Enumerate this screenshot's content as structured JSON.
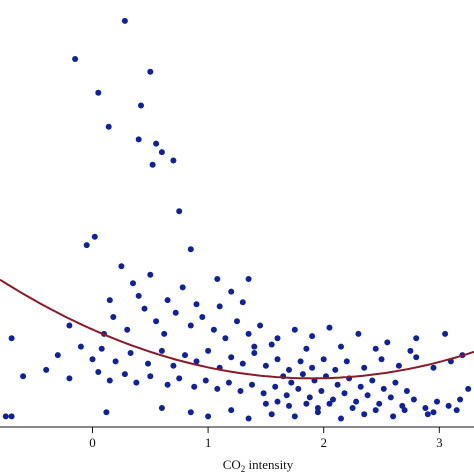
{
  "chart_data": {
    "type": "scatter",
    "xlabel": "CO",
    "xlabel_subscript": "2",
    "xlabel_suffix": " intensity",
    "xlim": [
      -0.8,
      3.3
    ],
    "ylim": [
      0,
      10
    ],
    "x_ticks": [
      {
        "value": 0,
        "label": "0"
      },
      {
        "value": 1,
        "label": "1"
      },
      {
        "value": 2,
        "label": "2"
      },
      {
        "value": 3,
        "label": "3"
      }
    ],
    "y_axis_visible": false,
    "grid": false,
    "fit_curve": {
      "type": "quadratic",
      "color": "#8b1a2b",
      "vertex_x": 1.9,
      "vertex_y": 1.15,
      "curvature": 0.32
    },
    "series": [
      {
        "color": "#10229a",
        "points": [
          [
            0.28,
            9.6
          ],
          [
            -0.15,
            8.7
          ],
          [
            0.5,
            8.4
          ],
          [
            0.05,
            7.9
          ],
          [
            0.42,
            7.6
          ],
          [
            0.14,
            7.1
          ],
          [
            0.4,
            6.8
          ],
          [
            0.55,
            6.7
          ],
          [
            0.6,
            6.5
          ],
          [
            0.7,
            6.3
          ],
          [
            0.52,
            6.2
          ],
          [
            0.75,
            5.1
          ],
          [
            0.02,
            4.5
          ],
          [
            -0.05,
            4.3
          ],
          [
            0.85,
            4.2
          ],
          [
            0.25,
            3.8
          ],
          [
            0.5,
            3.6
          ],
          [
            1.08,
            3.5
          ],
          [
            1.35,
            3.5
          ],
          [
            0.35,
            3.4
          ],
          [
            0.78,
            3.3
          ],
          [
            1.2,
            3.2
          ],
          [
            -0.7,
            2.1
          ],
          [
            -0.2,
            2.4
          ],
          [
            0.1,
            2.2
          ],
          [
            0.18,
            2.6
          ],
          [
            0.3,
            2.3
          ],
          [
            0.45,
            2.8
          ],
          [
            0.55,
            2.5
          ],
          [
            0.62,
            2.2
          ],
          [
            0.72,
            2.7
          ],
          [
            0.85,
            2.4
          ],
          [
            0.95,
            2.6
          ],
          [
            1.05,
            2.3
          ],
          [
            1.15,
            2.1
          ],
          [
            1.25,
            2.5
          ],
          [
            1.35,
            2.2
          ],
          [
            1.45,
            2.4
          ],
          [
            1.6,
            2.1
          ],
          [
            1.75,
            2.3
          ],
          [
            1.9,
            2.15
          ],
          [
            2.05,
            2.35
          ],
          [
            2.3,
            2.2
          ],
          [
            2.55,
            2.0
          ],
          [
            2.8,
            2.1
          ],
          [
            3.05,
            2.2
          ],
          [
            -0.3,
            1.7
          ],
          [
            -0.1,
            1.9
          ],
          [
            0.0,
            1.6
          ],
          [
            0.08,
            1.85
          ],
          [
            0.2,
            1.55
          ],
          [
            0.33,
            1.75
          ],
          [
            0.48,
            1.5
          ],
          [
            0.6,
            1.8
          ],
          [
            0.7,
            1.45
          ],
          [
            0.8,
            1.7
          ],
          [
            0.9,
            1.55
          ],
          [
            1.0,
            1.8
          ],
          [
            1.1,
            1.4
          ],
          [
            1.2,
            1.65
          ],
          [
            1.3,
            1.5
          ],
          [
            1.4,
            1.75
          ],
          [
            1.5,
            1.45
          ],
          [
            1.6,
            1.6
          ],
          [
            1.7,
            1.35
          ],
          [
            1.8,
            1.55
          ],
          [
            1.9,
            1.4
          ],
          [
            2.0,
            1.6
          ],
          [
            2.1,
            1.35
          ],
          [
            2.2,
            1.55
          ],
          [
            2.35,
            1.4
          ],
          [
            2.5,
            1.6
          ],
          [
            2.65,
            1.45
          ],
          [
            2.8,
            1.65
          ],
          [
            2.95,
            1.4
          ],
          [
            3.1,
            1.55
          ],
          [
            3.2,
            1.7
          ],
          [
            -0.6,
            1.2
          ],
          [
            -0.4,
            1.35
          ],
          [
            -0.2,
            1.15
          ],
          [
            0.05,
            1.3
          ],
          [
            0.15,
            1.1
          ],
          [
            0.28,
            1.25
          ],
          [
            0.38,
            1.05
          ],
          [
            0.5,
            1.2
          ],
          [
            0.65,
            1.0
          ],
          [
            0.75,
            1.15
          ],
          [
            0.88,
            0.95
          ],
          [
            0.98,
            1.1
          ],
          [
            1.08,
            0.9
          ],
          [
            1.18,
            1.05
          ],
          [
            1.28,
            0.85
          ],
          [
            1.38,
            1.0
          ],
          [
            1.48,
            0.8
          ],
          [
            1.58,
            0.95
          ],
          [
            1.68,
            0.75
          ],
          [
            1.78,
            0.9
          ],
          [
            1.88,
            0.7
          ],
          [
            1.98,
            0.85
          ],
          [
            2.08,
            0.65
          ],
          [
            2.18,
            0.8
          ],
          [
            2.28,
            0.6
          ],
          [
            2.38,
            0.75
          ],
          [
            2.48,
            0.55
          ],
          [
            2.58,
            0.7
          ],
          [
            2.68,
            0.5
          ],
          [
            2.78,
            0.65
          ],
          [
            2.88,
            0.45
          ],
          [
            2.98,
            0.6
          ],
          [
            3.08,
            0.5
          ],
          [
            3.18,
            0.65
          ],
          [
            0.6,
            0.45
          ],
          [
            0.85,
            0.35
          ],
          [
            1.0,
            0.25
          ],
          [
            1.2,
            0.4
          ],
          [
            1.35,
            0.2
          ],
          [
            1.55,
            0.3
          ],
          [
            1.75,
            0.25
          ],
          [
            1.95,
            0.35
          ],
          [
            2.15,
            0.2
          ],
          [
            2.35,
            0.3
          ],
          [
            2.6,
            0.25
          ],
          [
            2.9,
            0.3
          ],
          [
            -0.75,
            0.25
          ],
          [
            -0.7,
            0.25
          ],
          [
            0.12,
            0.35
          ],
          [
            1.65,
            1.2
          ],
          [
            1.72,
            1.05
          ],
          [
            1.82,
            1.25
          ],
          [
            1.92,
            1.1
          ],
          [
            2.02,
            1.2
          ],
          [
            2.12,
            1.0
          ],
          [
            2.22,
            1.15
          ],
          [
            2.32,
            0.95
          ],
          [
            2.42,
            1.1
          ],
          [
            2.52,
            0.9
          ],
          [
            2.62,
            1.05
          ],
          [
            2.72,
            0.85
          ],
          [
            1.5,
            0.55
          ],
          [
            1.6,
            0.6
          ],
          [
            1.7,
            0.5
          ],
          [
            1.85,
            0.55
          ],
          [
            1.95,
            0.45
          ],
          [
            2.05,
            0.55
          ],
          [
            2.25,
            0.45
          ],
          [
            2.45,
            0.4
          ],
          [
            2.7,
            0.4
          ],
          [
            2.95,
            0.35
          ],
          [
            3.15,
            0.4
          ],
          [
            3.25,
            0.9
          ],
          [
            1.4,
            1.9
          ],
          [
            1.55,
            1.95
          ],
          [
            1.85,
            1.85
          ],
          [
            2.15,
            1.9
          ],
          [
            2.45,
            1.85
          ],
          [
            2.75,
            1.8
          ],
          [
            0.15,
            3.0
          ],
          [
            0.4,
            3.1
          ],
          [
            0.65,
            3.0
          ],
          [
            0.9,
            2.9
          ],
          [
            1.1,
            2.85
          ],
          [
            1.3,
            2.95
          ]
        ]
      }
    ]
  }
}
